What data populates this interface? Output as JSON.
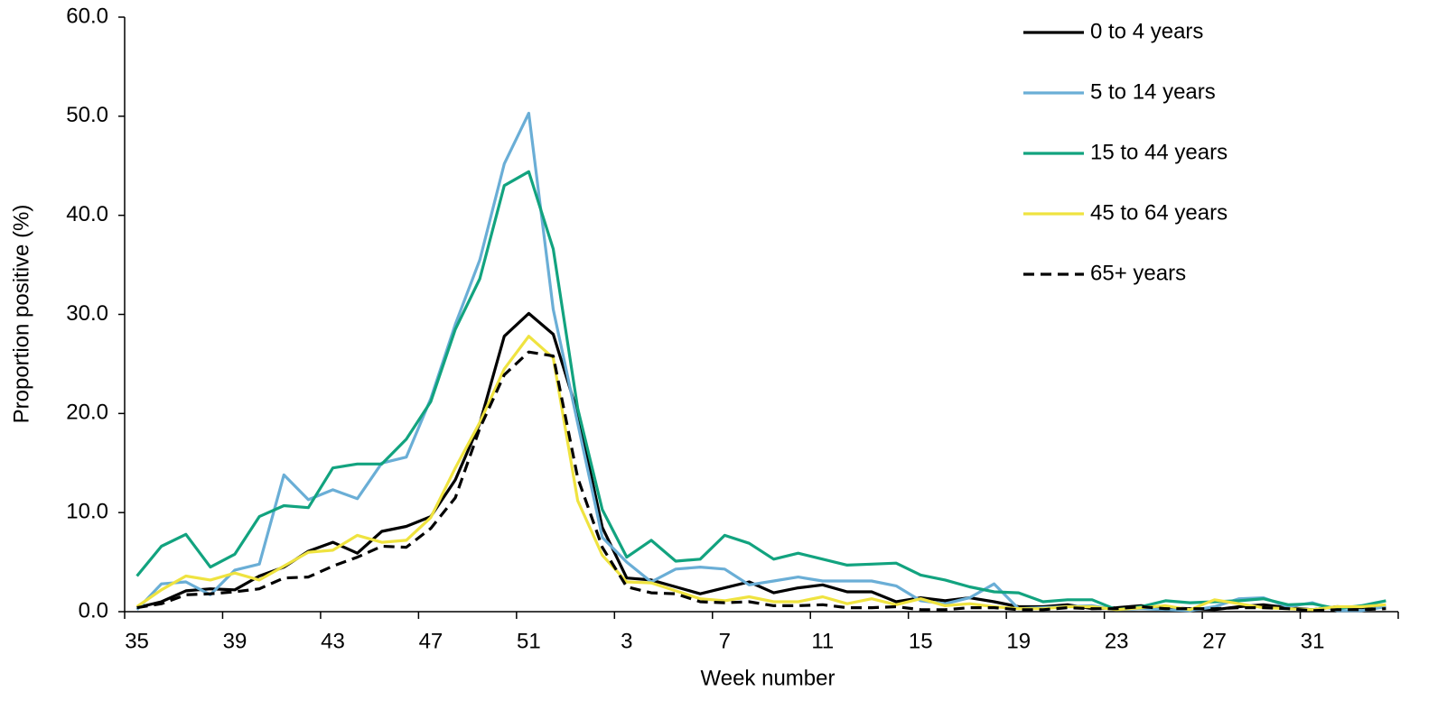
{
  "chart_data": {
    "type": "line",
    "x_label": "Week number",
    "y_label": "Proportion positive (%)",
    "categories": [
      "35",
      null,
      null,
      null,
      "39",
      null,
      null,
      null,
      "43",
      null,
      null,
      null,
      "47",
      null,
      null,
      null,
      "51",
      null,
      null,
      null,
      "3",
      null,
      null,
      null,
      "7",
      null,
      null,
      null,
      "11",
      null,
      null,
      null,
      "15",
      null,
      null,
      null,
      "19",
      null,
      null,
      null,
      "23",
      null,
      null,
      null,
      "27",
      null,
      null,
      null,
      "31",
      null,
      null,
      null
    ],
    "ylim": [
      0,
      60
    ],
    "yticks": [
      {
        "value": 0,
        "label": "0.0"
      },
      {
        "value": 10,
        "label": "10.0"
      },
      {
        "value": 20,
        "label": "20.0"
      },
      {
        "value": 30,
        "label": "30.0"
      },
      {
        "value": 40,
        "label": "40.0"
      },
      {
        "value": 50,
        "label": "50.0"
      },
      {
        "value": 60,
        "label": "60.0"
      }
    ],
    "grid": false,
    "legend": "top-right",
    "series": [
      {
        "name": "0 to 4 years",
        "color": "#000000",
        "dashed": false,
        "values": [
          0.4,
          1.0,
          2.1,
          2.3,
          2.2,
          3.6,
          4.5,
          6.1,
          7.0,
          5.9,
          8.1,
          8.6,
          9.6,
          13.3,
          19.0,
          27.8,
          30.1,
          28.0,
          20.0,
          8.5,
          3.4,
          3.2,
          2.5,
          1.8,
          2.4,
          3.0,
          1.9,
          2.4,
          2.7,
          2.0,
          2.0,
          1.0,
          1.4,
          1.1,
          1.4,
          1.0,
          0.5,
          0.5,
          0.7,
          0.3,
          0.4,
          0.6,
          0.4,
          0.3,
          0.2,
          0.5,
          0.7,
          0.4,
          0.2,
          0.5,
          0.4,
          0.5
        ]
      },
      {
        "name": "5 to 14 years",
        "color": "#6aaed6",
        "dashed": false,
        "values": [
          0.2,
          2.8,
          3.0,
          1.7,
          4.2,
          4.8,
          13.8,
          11.3,
          12.3,
          11.4,
          15.0,
          15.6,
          21.5,
          29.0,
          35.5,
          45.2,
          50.3,
          30.5,
          19.0,
          7.5,
          5.0,
          3.0,
          4.3,
          4.5,
          4.3,
          2.7,
          3.1,
          3.5,
          3.1,
          3.1,
          3.1,
          2.6,
          1.1,
          0.8,
          1.4,
          2.8,
          0.3,
          0.4,
          0.5,
          0.6,
          0.2,
          0.3,
          0.2,
          0.1,
          0.5,
          1.3,
          1.4,
          0.5,
          0.9,
          0.1,
          0.1,
          0.5
        ]
      },
      {
        "name": "15 to 44 years",
        "color": "#12a37f",
        "dashed": false,
        "values": [
          3.6,
          6.6,
          7.8,
          4.5,
          5.8,
          9.6,
          10.7,
          10.5,
          14.5,
          14.9,
          14.9,
          17.4,
          21.2,
          28.5,
          33.6,
          43.0,
          44.4,
          36.6,
          20.5,
          10.3,
          5.5,
          7.2,
          5.1,
          5.3,
          7.7,
          6.9,
          5.3,
          5.9,
          5.3,
          4.7,
          4.8,
          4.9,
          3.7,
          3.2,
          2.5,
          2.0,
          1.9,
          1.0,
          1.2,
          1.2,
          0.2,
          0.5,
          1.1,
          0.9,
          1.0,
          1.1,
          1.3,
          0.7,
          0.8,
          0.3,
          0.6,
          1.1
        ]
      },
      {
        "name": "45 to 64 years",
        "color": "#efe340",
        "dashed": false,
        "values": [
          0.5,
          2.2,
          3.6,
          3.2,
          3.9,
          3.2,
          4.6,
          6.0,
          6.2,
          7.7,
          7.0,
          7.2,
          9.5,
          14.5,
          19.1,
          24.5,
          27.8,
          25.6,
          11.2,
          5.7,
          3.0,
          2.9,
          2.1,
          1.3,
          1.1,
          1.5,
          1.0,
          1.0,
          1.5,
          0.8,
          1.3,
          0.7,
          1.3,
          0.6,
          0.8,
          0.5,
          0.3,
          0.3,
          0.5,
          0.5,
          0.2,
          0.4,
          0.6,
          0.2,
          1.2,
          0.8,
          0.4,
          0.3,
          0.2,
          0.5,
          0.5,
          0.7
        ]
      },
      {
        "name": "65+ years",
        "color": "#000000",
        "dashed": true,
        "values": [
          0.4,
          0.8,
          1.7,
          1.8,
          2.0,
          2.3,
          3.4,
          3.5,
          4.6,
          5.5,
          6.6,
          6.5,
          8.4,
          11.5,
          18.5,
          23.9,
          26.2,
          25.8,
          13.5,
          6.5,
          2.5,
          1.9,
          1.8,
          1.0,
          0.9,
          1.0,
          0.6,
          0.6,
          0.7,
          0.4,
          0.4,
          0.5,
          0.2,
          0.2,
          0.4,
          0.4,
          0.2,
          0.2,
          0.4,
          0.3,
          0.3,
          0.5,
          0.3,
          0.3,
          0.3,
          0.4,
          0.4,
          0.3,
          0.1,
          0.2,
          0.2,
          0.3
        ]
      }
    ]
  }
}
